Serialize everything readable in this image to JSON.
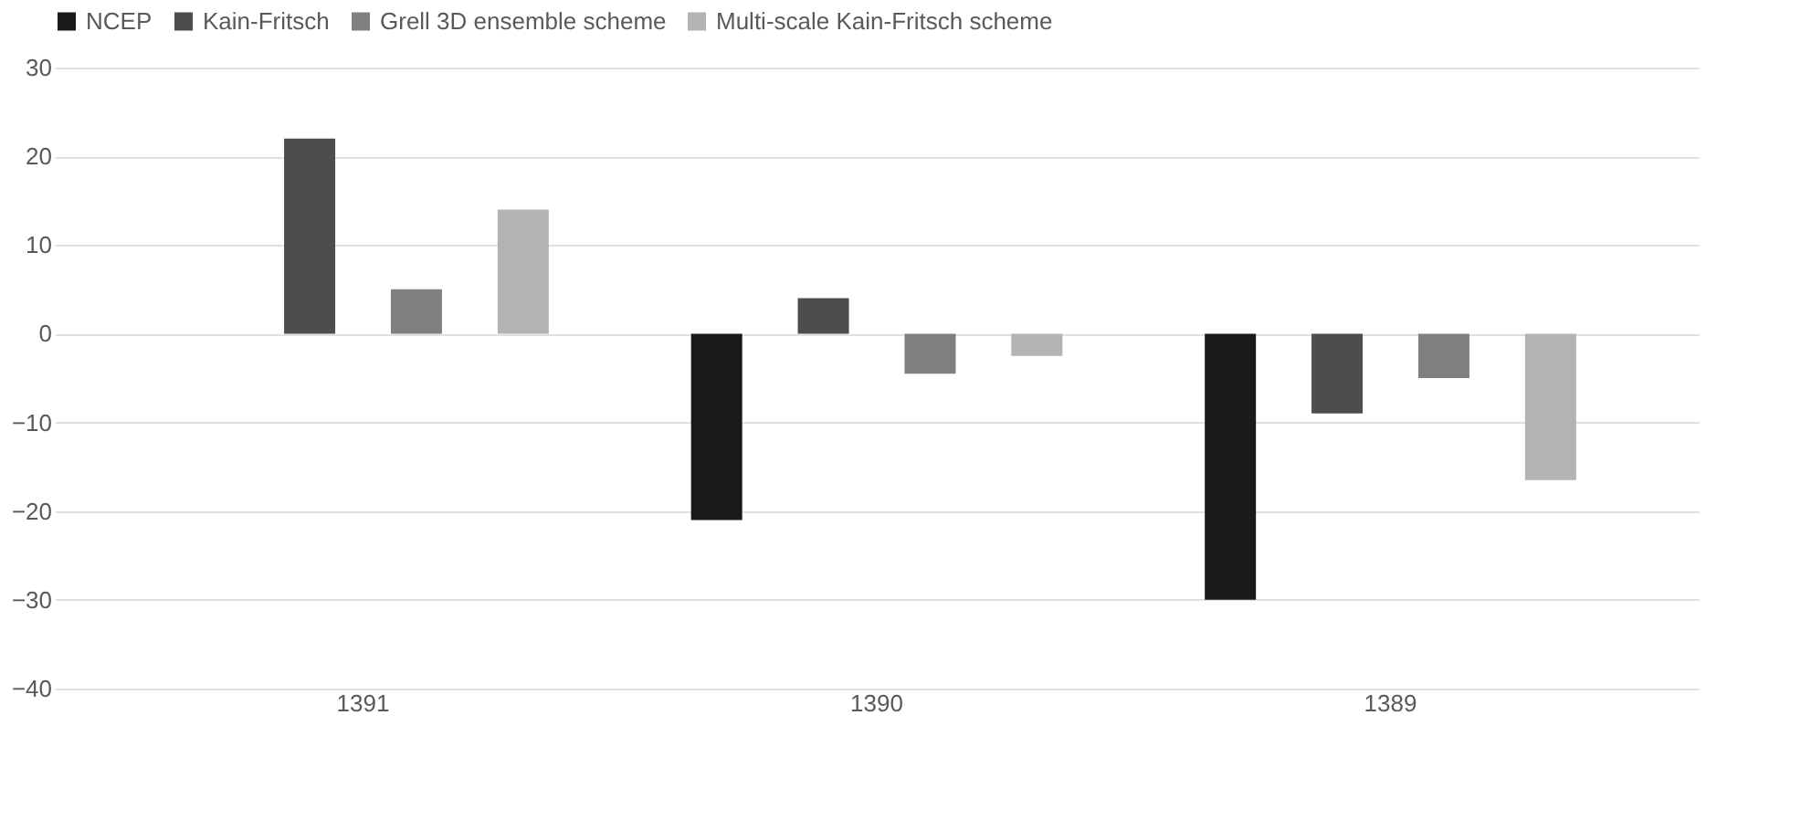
{
  "chart_data": {
    "type": "bar",
    "categories": [
      "1391",
      "1390",
      "1389"
    ],
    "series": [
      {
        "name": "NCEP",
        "color": "#1a1a1a",
        "values": [
          0,
          -21,
          -30
        ]
      },
      {
        "name": "Kain-Fritsch",
        "color": "#4d4d4d",
        "values": [
          22,
          4,
          -9
        ]
      },
      {
        "name": "Grell 3D ensemble scheme",
        "color": "#808080",
        "values": [
          5,
          -4.5,
          -5
        ]
      },
      {
        "name": "Multi-scale Kain-Fritsch scheme",
        "color": "#b3b3b3",
        "values": [
          14,
          -2.5,
          -16.5
        ]
      }
    ],
    "ylim": [
      -40,
      30
    ],
    "yticks": [
      -40,
      -30,
      -20,
      -10,
      0,
      10,
      20,
      30
    ],
    "grid": "y",
    "legend": "top"
  }
}
